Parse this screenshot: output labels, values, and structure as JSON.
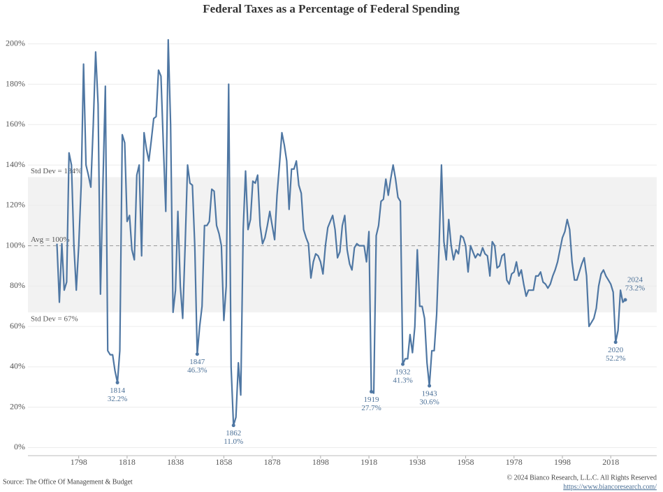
{
  "chart_data": {
    "type": "line",
    "title": "Federal Taxes as a Percentage of Federal Spending",
    "source": "Source: The Office Of Management & Budget",
    "copyright": "© 2024 Bianco Research, L.L.C. All Rights Reserved",
    "url": "https://www.biancoresearch.com/",
    "color": "#4f77a3",
    "grid": true,
    "xlim": [
      1777,
      2037
    ],
    "xticks": [
      1798,
      1818,
      1838,
      1858,
      1878,
      1898,
      1918,
      1938,
      1958,
      1978,
      1998,
      2018
    ],
    "ylim": [
      -4,
      211
    ],
    "yticks": [
      {
        "value": 0,
        "label": "0%"
      },
      {
        "value": 20,
        "label": "20%"
      },
      {
        "value": 40,
        "label": "40%"
      },
      {
        "value": 60,
        "label": "60%"
      },
      {
        "value": 80,
        "label": "80%"
      },
      {
        "value": 100,
        "label": "100%"
      },
      {
        "value": 120,
        "label": "120%"
      },
      {
        "value": 140,
        "label": "140%"
      },
      {
        "value": 160,
        "label": "160%"
      },
      {
        "value": 180,
        "label": "180%"
      },
      {
        "value": 200,
        "label": "200%"
      }
    ],
    "band": {
      "low": 67,
      "high": 134,
      "low_label": "Std Dev = 67%",
      "high_label": "Std Dev = 134%"
    },
    "average": {
      "value": 100,
      "label": "Avg = 100%"
    },
    "x": [
      1789,
      1790,
      1791,
      1792,
      1793,
      1794,
      1795,
      1796,
      1797,
      1798,
      1799,
      1800,
      1801,
      1802,
      1803,
      1804,
      1805,
      1806,
      1807,
      1808,
      1809,
      1810,
      1811,
      1812,
      1813,
      1814,
      1815,
      1816,
      1817,
      1818,
      1819,
      1820,
      1821,
      1822,
      1823,
      1824,
      1825,
      1826,
      1827,
      1828,
      1829,
      1830,
      1831,
      1832,
      1833,
      1834,
      1835,
      1836,
      1837,
      1838,
      1839,
      1840,
      1841,
      1842,
      1843,
      1844,
      1845,
      1846,
      1847,
      1848,
      1849,
      1850,
      1851,
      1852,
      1853,
      1854,
      1855,
      1856,
      1857,
      1858,
      1859,
      1860,
      1861,
      1862,
      1863,
      1864,
      1865,
      1866,
      1867,
      1868,
      1869,
      1870,
      1871,
      1872,
      1873,
      1874,
      1875,
      1876,
      1877,
      1878,
      1879,
      1880,
      1881,
      1882,
      1883,
      1884,
      1885,
      1886,
      1887,
      1888,
      1889,
      1890,
      1891,
      1892,
      1893,
      1894,
      1895,
      1896,
      1897,
      1898,
      1899,
      1900,
      1901,
      1902,
      1903,
      1904,
      1905,
      1906,
      1907,
      1908,
      1909,
      1910,
      1911,
      1912,
      1913,
      1914,
      1915,
      1916,
      1917,
      1918,
      1919,
      1920,
      1921,
      1922,
      1923,
      1924,
      1925,
      1926,
      1927,
      1928,
      1929,
      1930,
      1931,
      1932,
      1933,
      1934,
      1935,
      1936,
      1937,
      1938,
      1939,
      1940,
      1941,
      1942,
      1943,
      1944,
      1945,
      1946,
      1947,
      1948,
      1949,
      1950,
      1951,
      1952,
      1953,
      1954,
      1955,
      1956,
      1957,
      1958,
      1959,
      1960,
      1961,
      1962,
      1963,
      1964,
      1965,
      1966,
      1967,
      1968,
      1969,
      1970,
      1971,
      1972,
      1973,
      1974,
      1975,
      1976,
      1977,
      1978,
      1979,
      1980,
      1981,
      1982,
      1983,
      1984,
      1985,
      1986,
      1987,
      1988,
      1989,
      1990,
      1991,
      1992,
      1993,
      1994,
      1995,
      1996,
      1997,
      1998,
      1999,
      2000,
      2001,
      2002,
      2003,
      2004,
      2005,
      2006,
      2007,
      2008,
      2009,
      2010,
      2011,
      2012,
      2013,
      2014,
      2015,
      2016,
      2017,
      2018,
      2019,
      2020,
      2021,
      2022,
      2023,
      2024
    ],
    "values": [
      101,
      72,
      101,
      78,
      82,
      146,
      140,
      100,
      78,
      100,
      130,
      190,
      140,
      135,
      129,
      160,
      196,
      170,
      76,
      130,
      179,
      48,
      46,
      46,
      38,
      32.2,
      48,
      155,
      151,
      112,
      115,
      98,
      93,
      135,
      140,
      95,
      156,
      148,
      142,
      152,
      163,
      164,
      187,
      184,
      150,
      117,
      202,
      160,
      67,
      78,
      117,
      80,
      64,
      100,
      140,
      131,
      130,
      100,
      46.3,
      60,
      70,
      110,
      110,
      112,
      128,
      127,
      110,
      106,
      100,
      63,
      80,
      180,
      40,
      11.0,
      15,
      42,
      26,
      108,
      137,
      108,
      113,
      132,
      131,
      135,
      110,
      101,
      104,
      110,
      117,
      110,
      103,
      125,
      140,
      156,
      150,
      142,
      118,
      138,
      138,
      142,
      130,
      126,
      108,
      104,
      101,
      84,
      92,
      96,
      95,
      92,
      86,
      100,
      109,
      112,
      115,
      108,
      94,
      97,
      110,
      115,
      98,
      91,
      88,
      99,
      101,
      100,
      100,
      100,
      92,
      107,
      27.7,
      27,
      105,
      110,
      122,
      123,
      133,
      125,
      133,
      140,
      133,
      124,
      122,
      41.3,
      44,
      44,
      56,
      47,
      60,
      98,
      70,
      70,
      64,
      42,
      30.6,
      48,
      48,
      66,
      100,
      140,
      102,
      93,
      113,
      100,
      93,
      98,
      96,
      105,
      104,
      100,
      87,
      100,
      97,
      94,
      96,
      95,
      99,
      96,
      95,
      85,
      102,
      100,
      89,
      90,
      95,
      96,
      83,
      81,
      86,
      87,
      92,
      85,
      88,
      81,
      75,
      78,
      78,
      78,
      85,
      85,
      87,
      82,
      81,
      79,
      81,
      85,
      88,
      92,
      98,
      104,
      107,
      113,
      108,
      92,
      83,
      83,
      87,
      91,
      94,
      85,
      60,
      62,
      64,
      69,
      80,
      86,
      88,
      85,
      83,
      81,
      77,
      52.2,
      58,
      78,
      72,
      73.2
    ],
    "annotations": [
      {
        "x": 1814,
        "label": "1814",
        "value": 32.2,
        "value_label": "32.2%"
      },
      {
        "x": 1847,
        "label": "1847",
        "value": 46.3,
        "value_label": "46.3%"
      },
      {
        "x": 1862,
        "label": "1862",
        "value": 11.0,
        "value_label": "11.0%"
      },
      {
        "x": 1919,
        "label": "1919",
        "value": 27.7,
        "value_label": "27.7%"
      },
      {
        "x": 1932,
        "label": "1932",
        "value": 41.3,
        "value_label": "41.3%"
      },
      {
        "x": 1943,
        "label": "1943",
        "value": 30.6,
        "value_label": "30.6%"
      },
      {
        "x": 2020,
        "label": "2020",
        "value": 52.2,
        "value_label": "52.2%"
      },
      {
        "x": 2024,
        "label": "2024",
        "value": 73.2,
        "value_label": "73.2%"
      }
    ]
  }
}
